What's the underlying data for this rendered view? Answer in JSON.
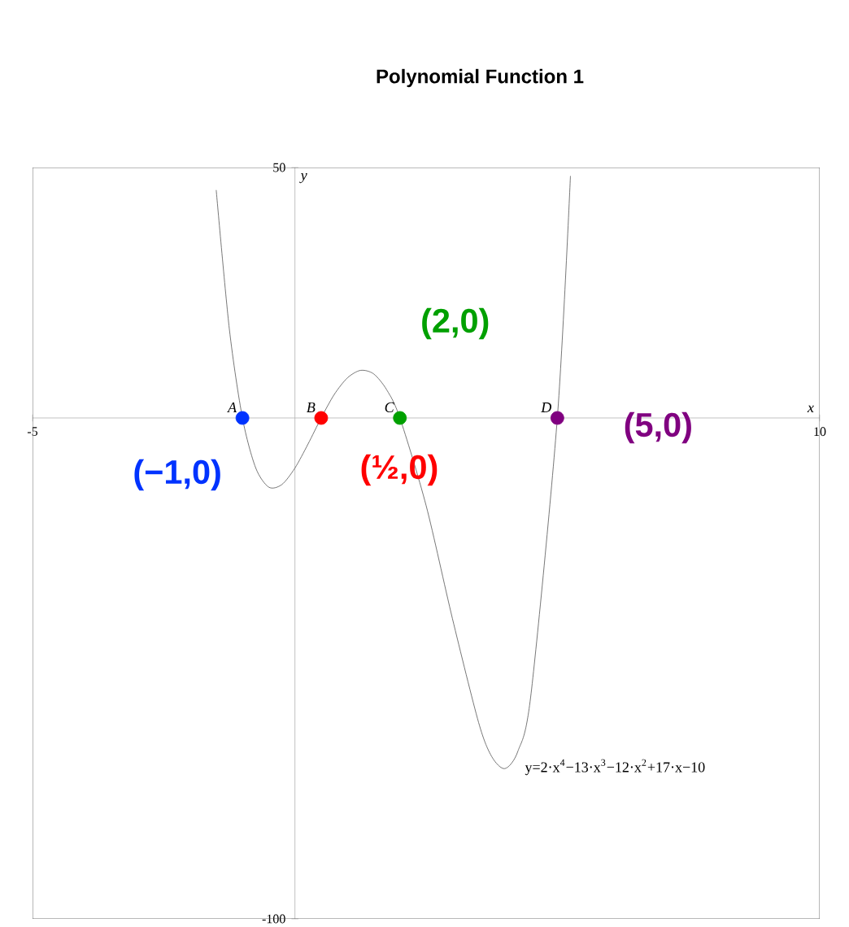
{
  "chart_data": {
    "type": "line",
    "title": "Polynomial Function 1",
    "xlabel": "x",
    "ylabel": "y",
    "xlim": [
      -5,
      10
    ],
    "ylim": [
      -100,
      50
    ],
    "xticks": [
      -5,
      10
    ],
    "yticks": [
      -100,
      50
    ],
    "grid": false,
    "legend": false,
    "series": [
      {
        "type": "line",
        "color": "#555555",
        "x": [
          -1.5,
          -1.25,
          -1,
          -0.75,
          -0.5,
          -0.25,
          0,
          0.25,
          0.5,
          0.75,
          1,
          1.25,
          1.5,
          1.75,
          2,
          2.5,
          3,
          3.5,
          3.75,
          4,
          4.25,
          4.5,
          5,
          5.25
        ],
        "values": [
          45.5,
          17.8,
          0,
          -9.9,
          -13.8,
          -13.3,
          -10,
          -5.2,
          0,
          4.7,
          8,
          9.5,
          8.8,
          5.6,
          0,
          -17.5,
          -40,
          -60.8,
          -67.6,
          -70,
          -66.5,
          -55,
          0,
          48.3
        ]
      },
      {
        "type": "scatter",
        "name": "(−1,0)",
        "color": "#0033ff",
        "x": [
          -1
        ],
        "values": [
          0
        ]
      },
      {
        "type": "scatter",
        "name": "(½,0)",
        "color": "#ff0000",
        "x": [
          0.5
        ],
        "values": [
          0
        ]
      },
      {
        "type": "scatter",
        "name": "(2,0)",
        "color": "#00a000",
        "x": [
          2
        ],
        "values": [
          0
        ]
      },
      {
        "type": "scatter",
        "name": "(5,0)",
        "color": "#800080",
        "x": [
          5
        ],
        "values": [
          0
        ]
      }
    ],
    "annotations": [
      {
        "text": "A",
        "x": -1,
        "y": 0
      },
      {
        "text": "B",
        "x": 0.5,
        "y": 0
      },
      {
        "text": "C",
        "x": 2,
        "y": 0
      },
      {
        "text": "D",
        "x": 5,
        "y": 0
      },
      "y=2·x$^{4}$−13·x$^{3}$−12·x$^{2}$+17·x−10"
    ]
  }
}
